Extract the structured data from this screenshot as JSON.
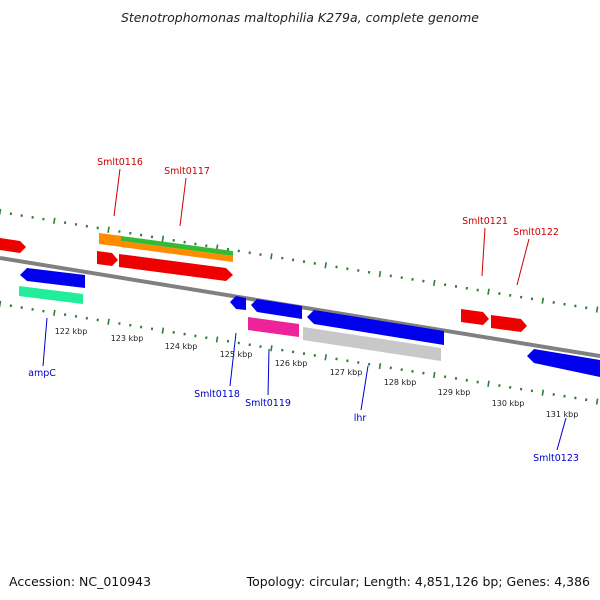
{
  "title": "Stenotrophomonas maltophilia K279a, complete genome",
  "footer": {
    "accession": "Accession: NC_010943",
    "summary": "Topology: circular; Length: 4,851,126 bp; Genes: 4,386"
  },
  "colors": {
    "backbone": "#808080",
    "tick": "#2e7d32",
    "forward_label": "#cc0000",
    "reverse_label": "#0000cc",
    "red": "#ee0000",
    "orange": "#ff8c00",
    "green": "#33bb33",
    "blue": "#0000ee",
    "teal": "#22ee99",
    "pink": "#ee2299",
    "gray": "#c8c8c8"
  },
  "scale_ticks": [
    "122 kbp",
    "123 kbp",
    "124 kbp",
    "125 kbp",
    "126 kbp",
    "127 kbp",
    "128 kbp",
    "129 kbp",
    "130 kbp",
    "131 kbp"
  ],
  "forward_labels": [
    "Smlt0116",
    "Smlt0117",
    "Smlt0121",
    "Smlt0122"
  ],
  "reverse_labels": [
    "ampC",
    "Smlt0118",
    "Smlt0119",
    "lhr",
    "Smlt0123"
  ]
}
